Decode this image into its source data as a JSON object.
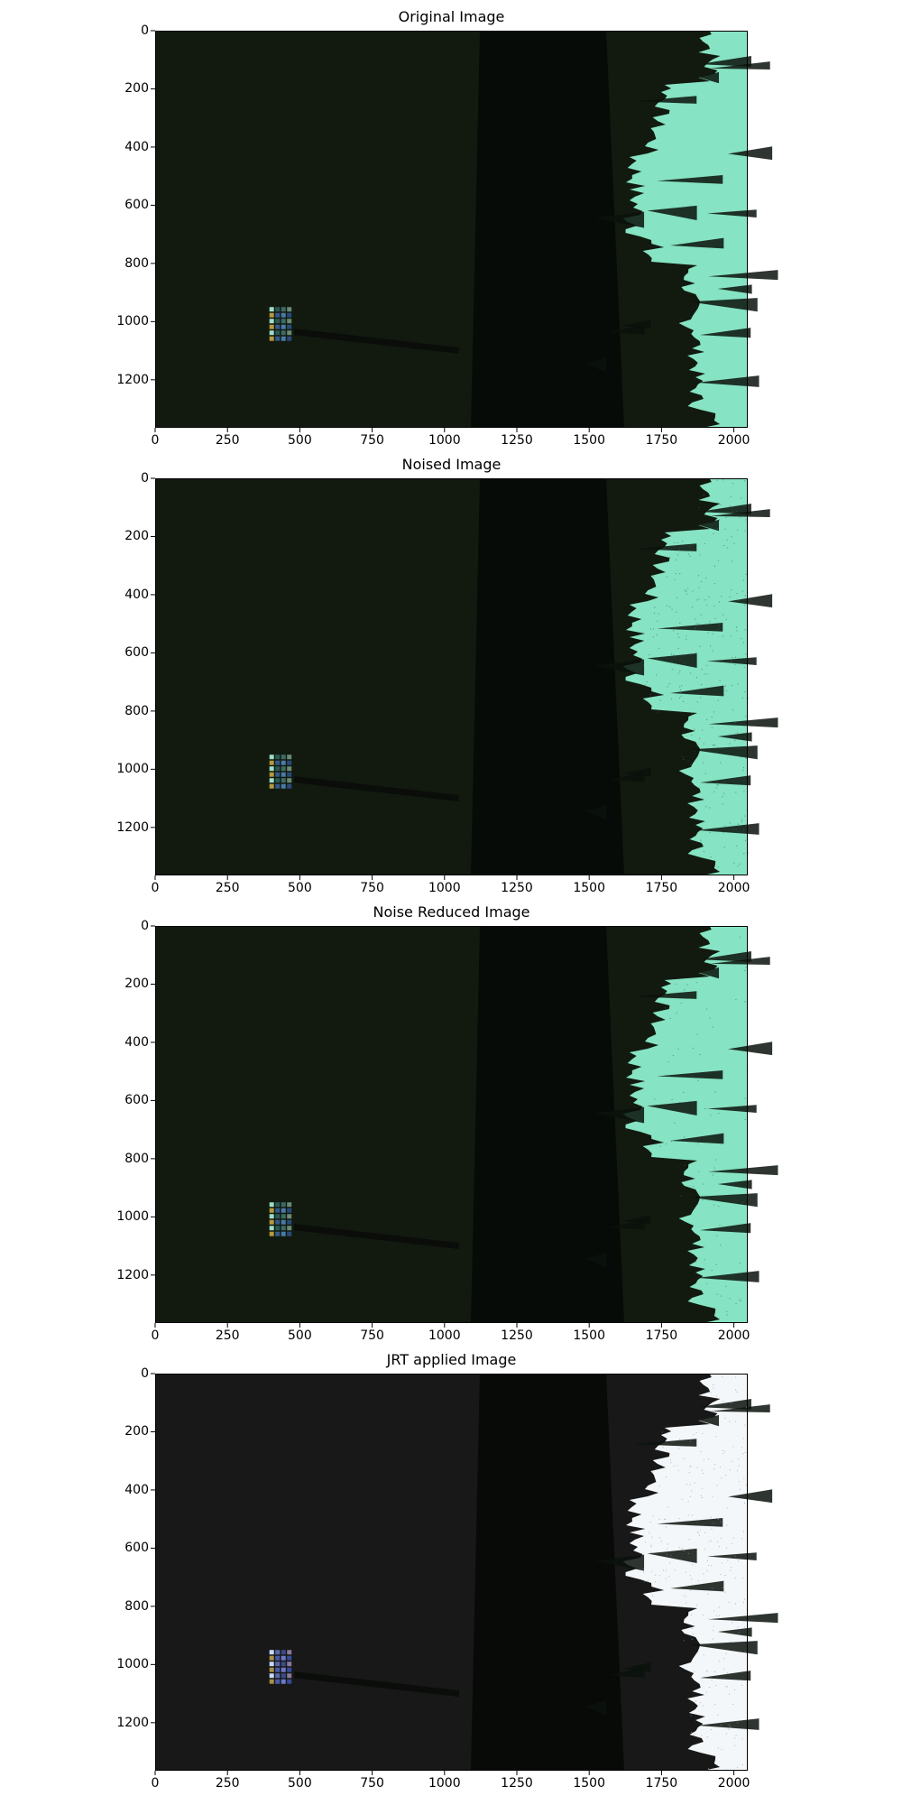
{
  "panels": [
    {
      "title": "Original Image",
      "variant": "original"
    },
    {
      "title": "Noised Image",
      "variant": "noised"
    },
    {
      "title": "Noise Reduced Image",
      "variant": "reduced"
    },
    {
      "title": "JRT applied Image",
      "variant": "jrt"
    }
  ],
  "axes": {
    "x_ticks": [
      "0",
      "250",
      "500",
      "750",
      "1000",
      "1250",
      "1500",
      "1750",
      "2000"
    ],
    "y_ticks": [
      "0",
      "200",
      "400",
      "600",
      "800",
      "1000",
      "1200"
    ],
    "x_tick_values": [
      0,
      250,
      500,
      750,
      1000,
      1250,
      1500,
      1750,
      2000
    ],
    "y_tick_values": [
      0,
      200,
      400,
      600,
      800,
      1000,
      1200
    ],
    "xlim": [
      0,
      2048
    ],
    "ylim": [
      0,
      1365
    ]
  },
  "colors": {
    "ground": "#121a10",
    "shadow": "#050805",
    "trees": "#0b120c",
    "sky_green": "#86e3c3",
    "sky_white": "#f4f7fa",
    "checker": [
      "#9fdcc8",
      "#2a5a55",
      "#3e6a66",
      "#6b8a74",
      "#b49a3a",
      "#345a8a",
      "#4a7aa4",
      "#2a4a7a"
    ]
  }
}
